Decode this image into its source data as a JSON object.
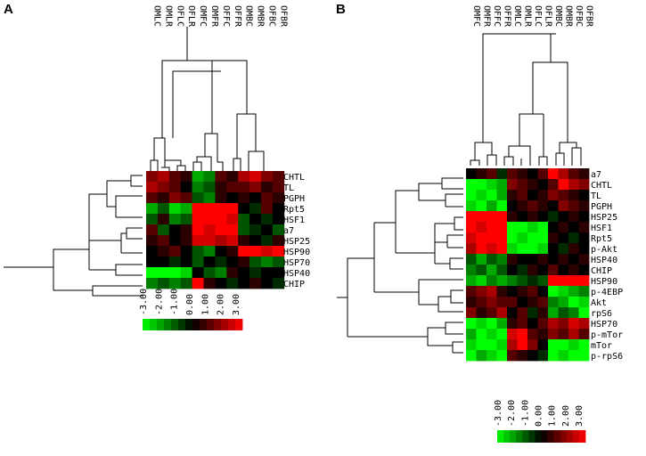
{
  "panels": [
    {
      "letter": "A",
      "columns": [
        "OMLC",
        "OMLR",
        "OFLC",
        "OFLR",
        "OMFC",
        "OMFR",
        "OFFC",
        "OFFR",
        "OMBC",
        "OMBR",
        "OFBC",
        "OFBR"
      ],
      "rows": [
        "CHTL",
        "TL",
        "PGPH",
        "Rpt5",
        "HSF1",
        "a7",
        "HSP25",
        "HSP90",
        "HSP70",
        "HSP40",
        "CHIP"
      ],
      "scale": [
        "-3.00",
        "-2.00",
        "-1.00",
        "0.00",
        "1.00",
        "2.00",
        "3.00"
      ],
      "matrix": [
        [
          1.5,
          2.0,
          1.0,
          0.5,
          -2.0,
          -1.5,
          1.0,
          0.5,
          2.0,
          2.5,
          1.5,
          1.0
        ],
        [
          2.0,
          1.5,
          1.0,
          0.0,
          -1.5,
          -1.0,
          0.5,
          1.0,
          1.0,
          1.5,
          0.5,
          1.0
        ],
        [
          1.0,
          0.5,
          1.5,
          1.0,
          -1.0,
          -1.5,
          0.5,
          0.0,
          0.5,
          0.0,
          1.0,
          0.5
        ],
        [
          -2.0,
          -1.0,
          -2.5,
          -2.0,
          3.0,
          3.0,
          3.0,
          3.0,
          0.0,
          -0.5,
          1.0,
          0.0
        ],
        [
          -1.0,
          0.5,
          -1.5,
          -1.0,
          3.0,
          3.0,
          3.0,
          2.5,
          -1.0,
          0.0,
          -0.5,
          0.0
        ],
        [
          1.0,
          -1.0,
          0.0,
          0.5,
          3.0,
          2.5,
          3.0,
          3.0,
          -1.0,
          -0.5,
          0.0,
          -1.0
        ],
        [
          0.5,
          1.0,
          0.0,
          0.5,
          2.5,
          2.5,
          2.0,
          2.5,
          0.5,
          0.0,
          -0.5,
          0.5
        ],
        [
          0.0,
          0.5,
          1.0,
          0.0,
          -1.0,
          -1.5,
          0.0,
          0.5,
          3.0,
          3.0,
          2.5,
          3.0
        ],
        [
          0.0,
          0.0,
          -0.5,
          0.0,
          -1.0,
          0.0,
          -0.5,
          0.0,
          0.5,
          -1.0,
          -1.5,
          -1.0
        ],
        [
          -3.0,
          -3.0,
          -3.0,
          -2.5,
          0.0,
          -1.0,
          -1.5,
          0.5,
          0.0,
          -0.5,
          0.0,
          0.0
        ],
        [
          -1.5,
          -1.0,
          -1.5,
          -1.0,
          3.0,
          0.5,
          0.0,
          -0.5,
          0.0,
          0.5,
          0.0,
          -0.5
        ]
      ]
    },
    {
      "letter": "B",
      "columns": [
        "OMFC",
        "OMFR",
        "OFFC",
        "OFFR",
        "OMLC",
        "OMLR",
        "OFLC",
        "OFLR",
        "OMBC",
        "OMBR",
        "OFBC",
        "OFBR"
      ],
      "rows": [
        "a7",
        "CHTL",
        "TL",
        "PGPH",
        "HSP25",
        "HSF1",
        "Rpt5",
        "p-Akt",
        "HSP40",
        "CHIP",
        "HSP90",
        "p-4EBP",
        "Akt",
        "rpS6",
        "HSP70",
        "p-mTor",
        "mTor",
        "p-rpS6"
      ],
      "scale": [
        "-3.00",
        "-2.00",
        "-1.00",
        "0.00",
        "1.00",
        "2.00",
        "3.00"
      ],
      "matrix": [
        [
          0.0,
          0.5,
          1.0,
          -0.5,
          1.0,
          0.5,
          0.0,
          1.0,
          3.0,
          2.0,
          1.0,
          0.5
        ],
        [
          -3.0,
          -3.0,
          -2.5,
          -2.0,
          1.5,
          1.0,
          0.5,
          0.0,
          1.0,
          3.0,
          2.0,
          1.5
        ],
        [
          -3.0,
          -2.5,
          -3.0,
          -2.0,
          0.5,
          1.0,
          0.0,
          0.5,
          1.5,
          1.0,
          0.5,
          0.0
        ],
        [
          -2.5,
          -3.0,
          -2.0,
          -3.0,
          0.0,
          0.5,
          1.0,
          0.5,
          0.0,
          1.5,
          1.0,
          0.5
        ],
        [
          3.0,
          3.0,
          3.0,
          3.0,
          0.5,
          0.0,
          0.5,
          0.0,
          -0.5,
          0.0,
          0.5,
          0.0
        ],
        [
          3.0,
          2.5,
          3.0,
          3.0,
          -3.0,
          -3.0,
          -2.5,
          -3.0,
          0.0,
          0.5,
          0.0,
          0.5
        ],
        [
          2.5,
          3.0,
          3.0,
          3.0,
          -3.0,
          -2.5,
          -3.0,
          -3.0,
          0.5,
          0.0,
          -0.5,
          0.0
        ],
        [
          2.0,
          3.0,
          2.5,
          3.0,
          -2.5,
          -3.0,
          -3.0,
          -2.5,
          0.0,
          -0.5,
          0.5,
          0.0
        ],
        [
          -1.0,
          -2.0,
          -1.0,
          -1.5,
          0.5,
          0.0,
          0.0,
          0.5,
          0.0,
          0.5,
          0.0,
          0.5
        ],
        [
          -1.5,
          -1.0,
          -2.0,
          -1.0,
          0.0,
          -0.5,
          0.5,
          0.0,
          1.0,
          0.0,
          0.5,
          0.0
        ],
        [
          -2.0,
          -2.5,
          -1.5,
          -2.0,
          -1.5,
          -1.0,
          -0.5,
          -1.0,
          3.0,
          3.0,
          3.0,
          3.0
        ],
        [
          1.0,
          1.5,
          2.0,
          0.5,
          0.0,
          0.5,
          1.0,
          0.0,
          -3.0,
          -2.5,
          -2.0,
          -1.5
        ],
        [
          0.5,
          1.0,
          1.5,
          1.0,
          1.0,
          0.0,
          0.5,
          1.0,
          -1.5,
          -2.0,
          -3.0,
          -2.5
        ],
        [
          1.5,
          0.5,
          1.0,
          2.0,
          0.0,
          1.0,
          -0.5,
          0.5,
          -2.0,
          -1.0,
          -1.5,
          -3.0
        ],
        [
          -3.0,
          -2.5,
          -3.0,
          -2.0,
          0.5,
          1.0,
          0.0,
          1.0,
          2.0,
          1.5,
          2.5,
          2.0
        ],
        [
          -2.0,
          -3.0,
          -2.5,
          -3.0,
          2.5,
          3.0,
          1.0,
          0.5,
          1.5,
          1.0,
          2.0,
          1.0
        ],
        [
          -2.5,
          -3.0,
          -3.0,
          -2.5,
          2.0,
          3.0,
          1.5,
          0.0,
          -3.0,
          -3.0,
          -2.5,
          -3.0
        ],
        [
          -3.0,
          -2.0,
          -2.5,
          -3.0,
          1.0,
          0.5,
          0.0,
          -0.5,
          -3.0,
          -2.5,
          -3.0,
          -3.0
        ]
      ]
    }
  ],
  "colors": {
    "neg3": "#00ff00",
    "zero": "#000000",
    "pos3": "#ff0000"
  }
}
